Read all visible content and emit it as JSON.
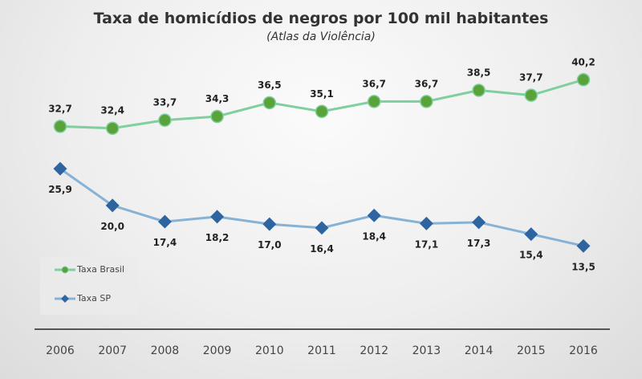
{
  "chart_data": {
    "type": "line",
    "title": "Taxa de homicídios de negros por 100 mil habitantes",
    "subtitle": "(Atlas da Violência)",
    "xlabel": "",
    "ylabel": "",
    "categories": [
      "2006",
      "2007",
      "2008",
      "2009",
      "2010",
      "2011",
      "2012",
      "2013",
      "2014",
      "2015",
      "2016"
    ],
    "ylim": [
      0,
      53
    ],
    "grid": false,
    "legend_position": "bottom-left",
    "series": [
      {
        "name": "Taxa Brasil",
        "color": "#7fcf9f",
        "marker_color": "#5aa33a",
        "marker": "circle",
        "label_position": "above",
        "values": [
          32.7,
          32.4,
          33.7,
          34.3,
          36.5,
          35.1,
          36.7,
          36.7,
          38.5,
          37.7,
          40.2
        ],
        "labels": [
          "32,7",
          "32,4",
          "33,7",
          "34,3",
          "36,5",
          "35,1",
          "36,7",
          "36,7",
          "38,5",
          "37,7",
          "40,2"
        ]
      },
      {
        "name": "Taxa SP",
        "color": "#86b2d6",
        "marker_color": "#2e65a0",
        "marker": "diamond",
        "label_position": "below",
        "values": [
          25.9,
          20.0,
          17.4,
          18.2,
          17.0,
          16.4,
          18.4,
          17.1,
          17.3,
          15.4,
          13.5
        ],
        "labels": [
          "25,9",
          "20,0",
          "17,4",
          "18,2",
          "17,0",
          "16,4",
          "18,4",
          "17,1",
          "17,3",
          "15,4",
          "13,5"
        ]
      }
    ]
  }
}
